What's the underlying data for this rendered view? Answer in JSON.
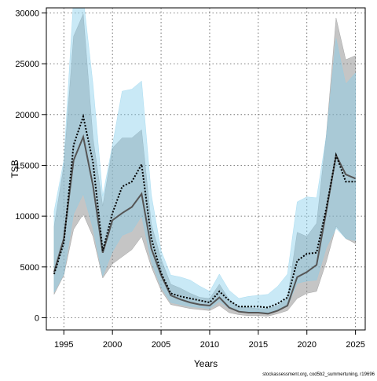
{
  "chart_data": {
    "type": "area",
    "xlabel": "Years",
    "ylabel": "TSB",
    "xlim": [
      1993.2,
      2026.0
    ],
    "ylim": [
      -1200,
      30500
    ],
    "x_ticks": [
      1995,
      2000,
      2005,
      2010,
      2015,
      2020,
      2025
    ],
    "y_ticks": [
      0,
      5000,
      10000,
      15000,
      20000,
      25000,
      30000
    ],
    "grid": true,
    "x": [
      1994,
      1995,
      1996,
      1997,
      1998,
      1999,
      2000,
      2001,
      2002,
      2003,
      2004,
      2005,
      2006,
      2007,
      2008,
      2009,
      2010,
      2011,
      2012,
      2013,
      2014,
      2015,
      2016,
      2017,
      2018,
      2019,
      2020,
      2021,
      2022,
      2023,
      2024,
      2025
    ],
    "series": [
      {
        "line_color": "#555555",
        "line_style": "solid",
        "band_color": "#7f7f7f",
        "values": [
          4500,
          7800,
          15500,
          17800,
          13000,
          6400,
          9600,
          10300,
          10900,
          12200,
          6800,
          4200,
          2200,
          1800,
          1500,
          1300,
          1200,
          2000,
          1000,
          600,
          500,
          500,
          400,
          700,
          1200,
          4000,
          4500,
          5200,
          10500,
          16000,
          14100,
          13700
        ],
        "lower": [
          2300,
          4200,
          8700,
          10200,
          8000,
          3900,
          5300,
          6000,
          6700,
          8000,
          5000,
          2700,
          1300,
          1100,
          900,
          800,
          700,
          1200,
          500,
          300,
          200,
          200,
          150,
          400,
          700,
          1900,
          2400,
          2600,
          5500,
          9000,
          7800,
          7300
        ],
        "upper": [
          9000,
          15000,
          27700,
          29900,
          17700,
          11000,
          16700,
          17700,
          17700,
          18500,
          9200,
          5800,
          3300,
          2900,
          2400,
          2000,
          1900,
          3300,
          1800,
          1100,
          1000,
          900,
          900,
          1200,
          1900,
          8400,
          8000,
          9300,
          18000,
          29500,
          25400,
          25800
        ]
      },
      {
        "line_color": "#000000",
        "line_style": "dotted",
        "band_color": "#87ceeb",
        "values": [
          4300,
          7400,
          17000,
          19800,
          15300,
          6600,
          10300,
          12900,
          13400,
          15100,
          7800,
          4400,
          2400,
          2100,
          1900,
          1700,
          1500,
          2600,
          1700,
          1100,
          1100,
          1100,
          1000,
          1400,
          2000,
          5600,
          6300,
          6400,
          10800,
          16000,
          13400,
          13400
        ],
        "lower": [
          2500,
          4300,
          10200,
          12200,
          8800,
          4100,
          6500,
          8100,
          8500,
          10000,
          5500,
          3000,
          1500,
          1300,
          1100,
          1000,
          900,
          1600,
          900,
          600,
          600,
          600,
          500,
          800,
          1100,
          3400,
          3600,
          3700,
          6900,
          8800,
          7800,
          7600
        ],
        "upper": [
          10500,
          15500,
          31500,
          31500,
          23000,
          12000,
          17000,
          22300,
          22500,
          23300,
          12100,
          6600,
          4200,
          4000,
          3700,
          3100,
          2600,
          4300,
          2700,
          1900,
          2100,
          2200,
          2300,
          3100,
          4300,
          11400,
          11900,
          11800,
          17900,
          27500,
          23000,
          24100
        ]
      }
    ],
    "annotation": "stockassessment.org, cod5b2_summertuning, r19696"
  }
}
